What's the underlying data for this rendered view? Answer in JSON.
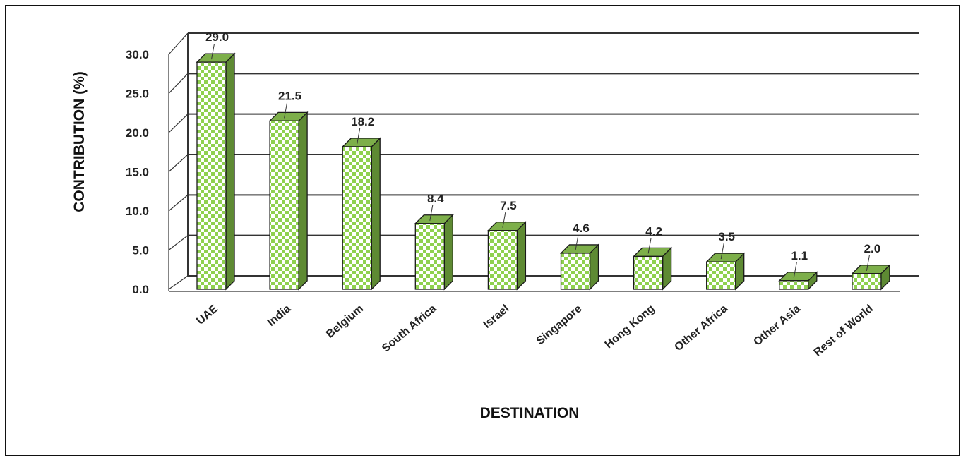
{
  "chart_data": {
    "type": "bar",
    "style": "3d-clustered-column",
    "categories": [
      "UAE",
      "India",
      "Belgium",
      "South Africa",
      "Israel",
      "Singapore",
      "Hong Kong",
      "Other Africa",
      "Other Asia",
      "Rest of World"
    ],
    "values": [
      29.0,
      21.5,
      18.2,
      8.4,
      7.5,
      4.6,
      4.2,
      3.5,
      1.1,
      2.0
    ],
    "data_labels": [
      "29.0",
      "21.5",
      "18.2",
      "8.4",
      "7.5",
      "4.6",
      "4.2",
      "3.5",
      "1.1",
      "2.0"
    ],
    "yticks": [
      "0.0",
      "5.0",
      "10.0",
      "15.0",
      "20.0",
      "25.0",
      "30.0"
    ],
    "xlabel": "DESTINATION",
    "ylabel": "CONTRIBUTION (%)",
    "ylim": [
      0,
      30
    ],
    "grid": true,
    "legend": "none",
    "colors": {
      "bar_fill": "#8fd14f",
      "bar_check": "#ffffff",
      "bar_side": "#5e8a33",
      "bar_top": "#7daf4a",
      "bar_edge": "#1a1a1a",
      "grid": "#333333"
    }
  }
}
